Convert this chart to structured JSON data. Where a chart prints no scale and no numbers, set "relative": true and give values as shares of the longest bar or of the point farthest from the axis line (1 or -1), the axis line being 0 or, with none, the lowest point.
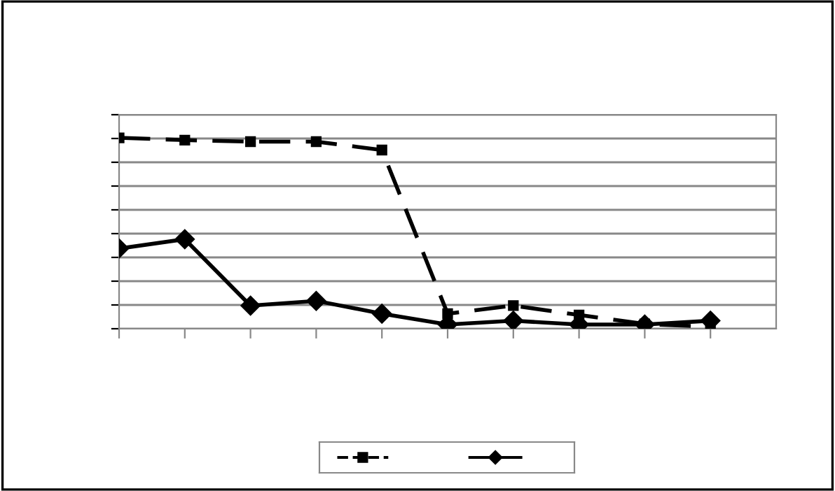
{
  "chart_data": {
    "type": "line",
    "relative": true,
    "grid": "y",
    "categories": [
      null,
      null,
      null,
      null,
      null,
      null,
      null,
      null,
      null,
      null
    ],
    "series": [
      {
        "color": "#000000",
        "line_style": "dashed",
        "marker": "square",
        "values": [
          1,
          0.988,
          0.98,
          0.98,
          0.936,
          0.079,
          0.121,
          0.072,
          0.025,
          0.01
        ]
      },
      {
        "color": "#000000",
        "line_style": "solid",
        "marker": "diamond",
        "values": [
          0.42,
          0.469,
          0.121,
          0.146,
          0.079,
          0.022,
          0.042,
          0.022,
          0.022,
          0.042
        ]
      }
    ]
  }
}
